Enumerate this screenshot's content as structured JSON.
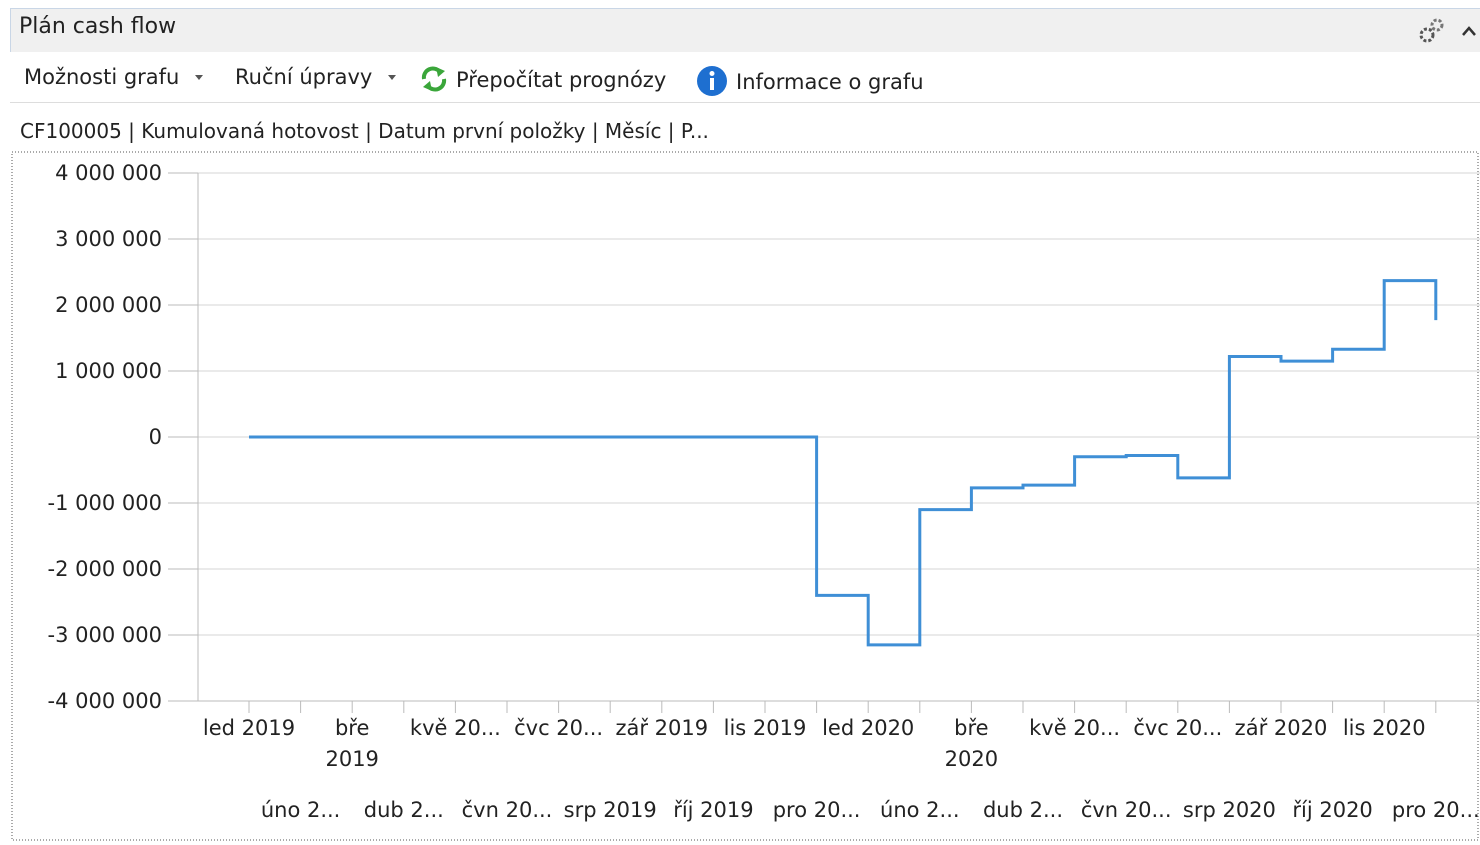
{
  "header": {
    "title": "Plán cash flow"
  },
  "toolbar": {
    "items": [
      "Možnosti grafu",
      "Ruční úpravy",
      "Přepočítat prognózy",
      "Informace o grafu"
    ]
  },
  "chart_data": {
    "type": "line",
    "step": true,
    "title": "CF100005 | Kumulovaná hotovost | Datum první položky | Měsíc | P...",
    "categories": [
      "led 2019",
      "úno 2...",
      "bře 2019",
      "dub 2...",
      "kvě 20...",
      "čvn 20...",
      "čvc 20...",
      "srp 2019",
      "zář 2019",
      "říj 2019",
      "lis 2019",
      "pro 20...",
      "led 2020",
      "úno 2...",
      "bře 2020",
      "dub 2...",
      "kvě 20...",
      "čvn 20...",
      "čvc 20...",
      "srp 2020",
      "zář 2020",
      "říj 2020",
      "lis 2020",
      "pro 20..."
    ],
    "series": [
      {
        "color": "#3f8fd6",
        "values": [
          0,
          0,
          0,
          0,
          0,
          0,
          0,
          0,
          0,
          0,
          0,
          -2400000,
          -3150000,
          -1100000,
          -770000,
          -730000,
          -300000,
          -280000,
          -620000,
          1220000,
          1150000,
          1330000,
          2370000,
          1770000
        ]
      }
    ],
    "ylim": [
      -4000000,
      4000000
    ],
    "yticks": [
      {
        "value": 4000000,
        "label": "4 000 000"
      },
      {
        "value": 3000000,
        "label": "3 000 000"
      },
      {
        "value": 2000000,
        "label": "2 000 000"
      },
      {
        "value": 1000000,
        "label": "1 000 000"
      },
      0,
      {
        "value": -1000000,
        "label": "-1 000 000"
      },
      {
        "value": -2000000,
        "label": "-2 000 000"
      },
      {
        "value": -3000000,
        "label": "-3 000 000"
      },
      {
        "value": -4000000,
        "label": "-4 000 000"
      }
    ],
    "grid": true
  }
}
